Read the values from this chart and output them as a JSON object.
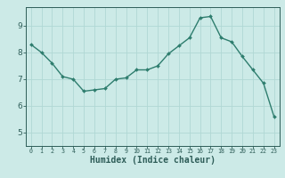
{
  "x": [
    0,
    1,
    2,
    3,
    4,
    5,
    6,
    7,
    8,
    9,
    10,
    11,
    12,
    13,
    14,
    15,
    16,
    17,
    18,
    19,
    20,
    21,
    22,
    23
  ],
  "y": [
    8.3,
    8.0,
    7.6,
    7.1,
    7.0,
    6.55,
    6.6,
    6.65,
    7.0,
    7.05,
    7.35,
    7.35,
    7.5,
    7.95,
    8.25,
    8.55,
    9.3,
    9.35,
    8.55,
    8.4,
    7.85,
    7.35,
    6.85,
    5.6
  ],
  "line_color": "#2e7d6e",
  "marker": "D",
  "marker_size": 2,
  "linewidth": 1.0,
  "background_color": "#cceae7",
  "grid_color": "#b0d8d4",
  "tick_color": "#2e5d58",
  "xlabel": "Humidex (Indice chaleur)",
  "xlabel_fontsize": 7,
  "xlim": [
    -0.5,
    23.5
  ],
  "ylim": [
    4.5,
    9.7
  ],
  "yticks": [
    5,
    6,
    7,
    8,
    9
  ],
  "xticks": [
    0,
    1,
    2,
    3,
    4,
    5,
    6,
    7,
    8,
    9,
    10,
    11,
    12,
    13,
    14,
    15,
    16,
    17,
    18,
    19,
    20,
    21,
    22,
    23
  ]
}
